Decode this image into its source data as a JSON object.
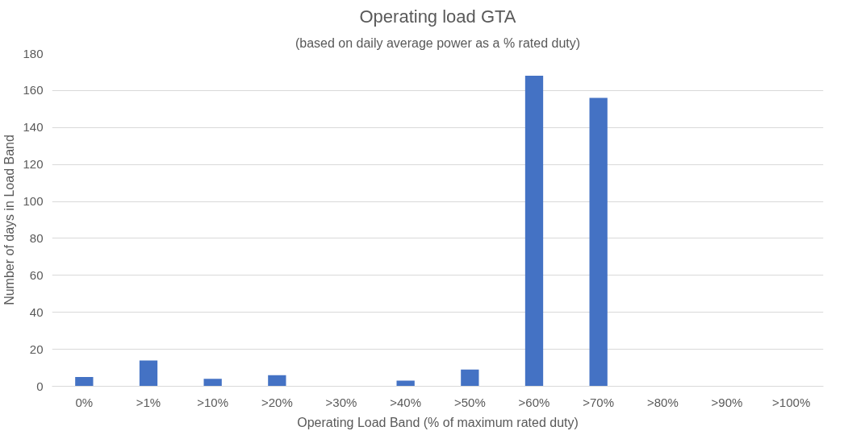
{
  "chart_data": {
    "type": "bar",
    "title": "Operating load GTA",
    "subtitle": "(based on daily average power as a % rated duty)",
    "xlabel": "Operating Load Band (% of maximum rated duty)",
    "ylabel": "Number of days in Load Band",
    "categories": [
      "0%",
      ">1%",
      ">10%",
      ">20%",
      ">30%",
      ">40%",
      ">50%",
      ">60%",
      ">70%",
      ">80%",
      ">90%",
      ">100%"
    ],
    "values": [
      5,
      14,
      4,
      6,
      0,
      3,
      9,
      168,
      156,
      0,
      0,
      0
    ],
    "color": "#4472c4",
    "ylim": [
      0,
      180
    ],
    "yticks": [
      0,
      20,
      40,
      60,
      80,
      100,
      120,
      140,
      160,
      180
    ],
    "grid": "y"
  }
}
